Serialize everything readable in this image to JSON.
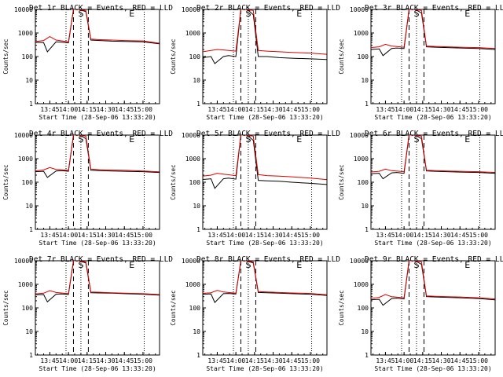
{
  "chart_data": {
    "type": "line",
    "y_scale": "log",
    "ylim": [
      1,
      10000
    ],
    "xlim": [
      "13:33:20",
      "15:13:20"
    ],
    "x_ticks": [
      "13:45",
      "14:00",
      "14:15",
      "14:30",
      "14:45",
      "15:00"
    ],
    "y_ticks": [
      "1",
      "10",
      "100",
      "1000",
      "10000"
    ],
    "ylabel": "Counts/sec",
    "xlabel": "Start Time (28-Sep-06 13:33:20)",
    "colors": {
      "events": "#000000",
      "lld": "#dd0000"
    },
    "markers": [
      {
        "label": "S",
        "time": "14:10"
      },
      {
        "label": "E",
        "time": "14:51"
      }
    ],
    "dotted_lines": [
      "13:58",
      "14:10",
      "15:01"
    ],
    "dashed_lines": [
      "14:04",
      "14:16"
    ],
    "panels": [
      {
        "title": "Det 1r BLACK = Events, RED = LLD",
        "series": [
          {
            "name": "Events",
            "x": [
              "13:33",
              "13:40",
              "13:43",
              "13:50",
              "13:54",
              "14:00",
              "14:04",
              "14:09",
              "14:14",
              "14:18",
              "14:25",
              "14:35",
              "14:45",
              "15:00",
              "15:13"
            ],
            "y": [
              400,
              390,
              160,
              420,
              410,
              380,
              10000,
              10000,
              8000,
              500,
              480,
              450,
              440,
              420,
              350
            ]
          },
          {
            "name": "LLD",
            "x": [
              "13:33",
              "13:40",
              "13:45",
              "13:50",
              "14:00",
              "14:04",
              "14:09",
              "14:14",
              "14:18",
              "14:25",
              "14:35",
              "14:45",
              "15:00",
              "15:13"
            ],
            "y": [
              430,
              480,
              700,
              500,
              420,
              10000,
              10000,
              9000,
              550,
              520,
              500,
              480,
              460,
              370
            ]
          }
        ]
      },
      {
        "title": "Det 2r BLACK = Events, RED = LLD",
        "series": [
          {
            "name": "Events",
            "x": [
              "13:33",
              "13:40",
              "13:43",
              "13:50",
              "13:54",
              "14:00",
              "14:04",
              "14:09",
              "14:14",
              "14:18",
              "14:25",
              "14:35",
              "14:45",
              "15:00",
              "15:13"
            ],
            "y": [
              90,
              100,
              50,
              100,
              110,
              100,
              10000,
              10000,
              6000,
              100,
              100,
              90,
              85,
              80,
              75
            ]
          },
          {
            "name": "LLD",
            "x": [
              "13:33",
              "13:40",
              "13:45",
              "13:50",
              "14:00",
              "14:04",
              "14:09",
              "14:14",
              "14:18",
              "14:25",
              "14:35",
              "14:45",
              "15:00",
              "15:13"
            ],
            "y": [
              160,
              180,
              200,
              190,
              170,
              10000,
              10000,
              9000,
              180,
              170,
              160,
              150,
              140,
              125
            ]
          }
        ]
      },
      {
        "title": "Det 3r BLACK = Events, RED = LLD",
        "series": [
          {
            "name": "Events",
            "x": [
              "13:33",
              "13:40",
              "13:43",
              "13:50",
              "13:54",
              "14:00",
              "14:04",
              "14:09",
              "14:14",
              "14:18",
              "14:25",
              "14:35",
              "14:45",
              "15:00",
              "15:13"
            ],
            "y": [
              200,
              210,
              110,
              220,
              230,
              220,
              10000,
              10000,
              7000,
              260,
              250,
              240,
              230,
              220,
              200
            ]
          },
          {
            "name": "LLD",
            "x": [
              "13:33",
              "13:40",
              "13:45",
              "13:50",
              "14:00",
              "14:04",
              "14:09",
              "14:14",
              "14:18",
              "14:25",
              "14:35",
              "14:45",
              "15:00",
              "15:13"
            ],
            "y": [
              240,
              260,
              330,
              280,
              250,
              10000,
              10000,
              9000,
              280,
              270,
              260,
              250,
              240,
              220
            ]
          }
        ]
      },
      {
        "title": "Det 4r BLACK = Events, RED = LLD",
        "series": [
          {
            "name": "Events",
            "x": [
              "13:33",
              "13:40",
              "13:43",
              "13:50",
              "13:54",
              "14:00",
              "14:04",
              "14:09",
              "14:14",
              "14:18",
              "14:25",
              "14:35",
              "14:45",
              "15:00",
              "15:13"
            ],
            "y": [
              280,
              290,
              160,
              300,
              310,
              290,
              10000,
              10000,
              7000,
              320,
              310,
              300,
              290,
              280,
              260
            ]
          },
          {
            "name": "LLD",
            "x": [
              "13:33",
              "13:40",
              "13:45",
              "13:50",
              "14:00",
              "14:04",
              "14:09",
              "14:14",
              "14:18",
              "14:25",
              "14:35",
              "14:45",
              "15:00",
              "15:13"
            ],
            "y": [
              300,
              330,
              420,
              350,
              320,
              10000,
              10000,
              9000,
              360,
              340,
              330,
              320,
              300,
              275
            ]
          }
        ]
      },
      {
        "title": "Det 5r BLACK = Events, RED = LLD",
        "series": [
          {
            "name": "Events",
            "x": [
              "13:33",
              "13:40",
              "13:43",
              "13:50",
              "13:54",
              "14:00",
              "14:04",
              "14:09",
              "14:14",
              "14:18",
              "14:25",
              "14:35",
              "14:45",
              "15:00",
              "15:13"
            ],
            "y": [
              130,
              140,
              55,
              140,
              150,
              135,
              10000,
              10000,
              6000,
              120,
              115,
              110,
              100,
              90,
              80
            ]
          },
          {
            "name": "LLD",
            "x": [
              "13:33",
              "13:40",
              "13:45",
              "13:50",
              "14:00",
              "14:04",
              "14:09",
              "14:14",
              "14:18",
              "14:25",
              "14:35",
              "14:45",
              "15:00",
              "15:13"
            ],
            "y": [
              180,
              200,
              240,
              220,
              190,
              10000,
              10000,
              9000,
              210,
              190,
              180,
              170,
              150,
              130
            ]
          }
        ]
      },
      {
        "title": "Det 6r BLACK = Events, RED = LLD",
        "series": [
          {
            "name": "Events",
            "x": [
              "13:33",
              "13:40",
              "13:43",
              "13:50",
              "13:54",
              "14:00",
              "14:04",
              "14:09",
              "14:14",
              "14:18",
              "14:25",
              "14:35",
              "14:45",
              "15:00",
              "15:13"
            ],
            "y": [
              230,
              240,
              140,
              250,
              260,
              240,
              10000,
              10000,
              7000,
              300,
              290,
              280,
              270,
              260,
              240
            ]
          },
          {
            "name": "LLD",
            "x": [
              "13:33",
              "13:40",
              "13:45",
              "13:50",
              "14:00",
              "14:04",
              "14:09",
              "14:14",
              "14:18",
              "14:25",
              "14:35",
              "14:45",
              "15:00",
              "15:13"
            ],
            "y": [
              270,
              290,
              360,
              310,
              280,
              10000,
              10000,
              9000,
              320,
              310,
              300,
              290,
              280,
              260
            ]
          }
        ]
      },
      {
        "title": "Det 7r BLACK = Events, RED = LLD",
        "series": [
          {
            "name": "Events",
            "x": [
              "13:33",
              "13:40",
              "13:43",
              "13:50",
              "13:54",
              "14:00",
              "14:04",
              "14:09",
              "14:14",
              "14:18",
              "14:25",
              "14:35",
              "14:45",
              "15:00",
              "15:13"
            ],
            "y": [
              360,
              370,
              180,
              380,
              390,
              370,
              10000,
              10000,
              8000,
              440,
              430,
              420,
              400,
              380,
              350
            ]
          },
          {
            "name": "LLD",
            "x": [
              "13:33",
              "13:40",
              "13:45",
              "13:50",
              "14:00",
              "14:04",
              "14:09",
              "14:14",
              "14:18",
              "14:25",
              "14:35",
              "14:45",
              "15:00",
              "15:13"
            ],
            "y": [
              390,
              420,
              540,
              450,
              400,
              10000,
              10000,
              9000,
              470,
              460,
              440,
              420,
              400,
              370
            ]
          }
        ]
      },
      {
        "title": "Det 8r BLACK = Events, RED = LLD",
        "series": [
          {
            "name": "Events",
            "x": [
              "13:33",
              "13:40",
              "13:43",
              "13:50",
              "13:54",
              "14:00",
              "14:04",
              "14:09",
              "14:14",
              "14:18",
              "14:25",
              "14:35",
              "14:45",
              "15:00",
              "15:13"
            ],
            "y": [
              380,
              390,
              170,
              400,
              410,
              390,
              10000,
              10000,
              8000,
              450,
              440,
              420,
              400,
              380,
              340
            ]
          },
          {
            "name": "LLD",
            "x": [
              "13:33",
              "13:40",
              "13:45",
              "13:50",
              "14:00",
              "14:04",
              "14:09",
              "14:14",
              "14:18",
              "14:25",
              "14:35",
              "14:45",
              "15:00",
              "15:13"
            ],
            "y": [
              410,
              440,
              560,
              470,
              420,
              10000,
              10000,
              9000,
              490,
              470,
              450,
              430,
              410,
              360
            ]
          }
        ]
      },
      {
        "title": "Det 9r BLACK = Events, RED = LLD",
        "series": [
          {
            "name": "Events",
            "x": [
              "13:33",
              "13:40",
              "13:43",
              "13:50",
              "13:54",
              "14:00",
              "14:04",
              "14:09",
              "14:14",
              "14:18",
              "14:25",
              "14:35",
              "14:45",
              "15:00",
              "15:13"
            ],
            "y": [
              220,
              230,
              130,
              250,
              260,
              240,
              10000,
              10000,
              7000,
              300,
              290,
              280,
              270,
              250,
              220
            ]
          },
          {
            "name": "LLD",
            "x": [
              "13:33",
              "13:40",
              "13:45",
              "13:50",
              "14:00",
              "14:04",
              "14:09",
              "14:14",
              "14:18",
              "14:25",
              "14:35",
              "14:45",
              "15:00",
              "15:13"
            ],
            "y": [
              250,
              280,
              370,
              300,
              270,
              10000,
              10000,
              9000,
              320,
              310,
              300,
              290,
              270,
              240
            ]
          }
        ]
      }
    ]
  }
}
